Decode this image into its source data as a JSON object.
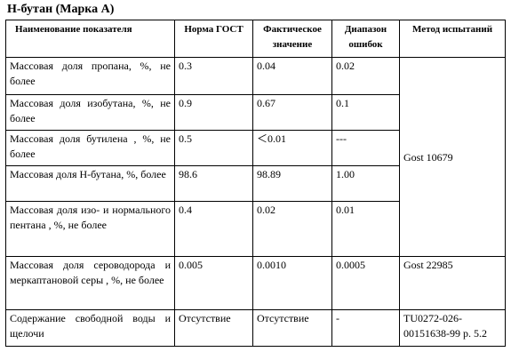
{
  "title": "Н-бутан (Марка А)",
  "table": {
    "headers": {
      "name": "Наименование показателя",
      "norm": "Норма ГОСТ",
      "actual": "Фактическое значение",
      "range": "Диапазон ошибок",
      "method": "Метод испытаний"
    },
    "rows": [
      {
        "name": "Массовая доля пропана, %, не более",
        "norm": "0.3",
        "actual": "0.04",
        "range": "0.02"
      },
      {
        "name": "Массовая доля изобутана, %, не более",
        "norm": "0.9",
        "actual": "0.67",
        "range": "0.1"
      },
      {
        "name": "Массовая доля бутилена , %, не более",
        "norm": "0.5",
        "actual": "＜0.01",
        "range": "---"
      },
      {
        "name": "Массовая доля Н-бутана, %, более",
        "norm": "98.6",
        "actual": "98.89",
        "range": "1.00"
      },
      {
        "name": "Массовая доля изо- и нормального пентана , %, не более",
        "norm": "0.4",
        "actual": "0.02",
        "range": "0.01"
      },
      {
        "name": "Массовая доля сероводорода и меркаптановой серы , %, не более",
        "norm": "0.005",
        "actual": "0.0010",
        "range": "0.0005",
        "method": "Gost 22985"
      },
      {
        "name": "Содержание свободной воды и щелочи",
        "norm": "Отсутствие",
        "actual": "Отсутствие",
        "range": "-",
        "method": "TU0272-026-00151638-99 p. 5.2"
      }
    ],
    "merged_method": "Gost 10679"
  }
}
